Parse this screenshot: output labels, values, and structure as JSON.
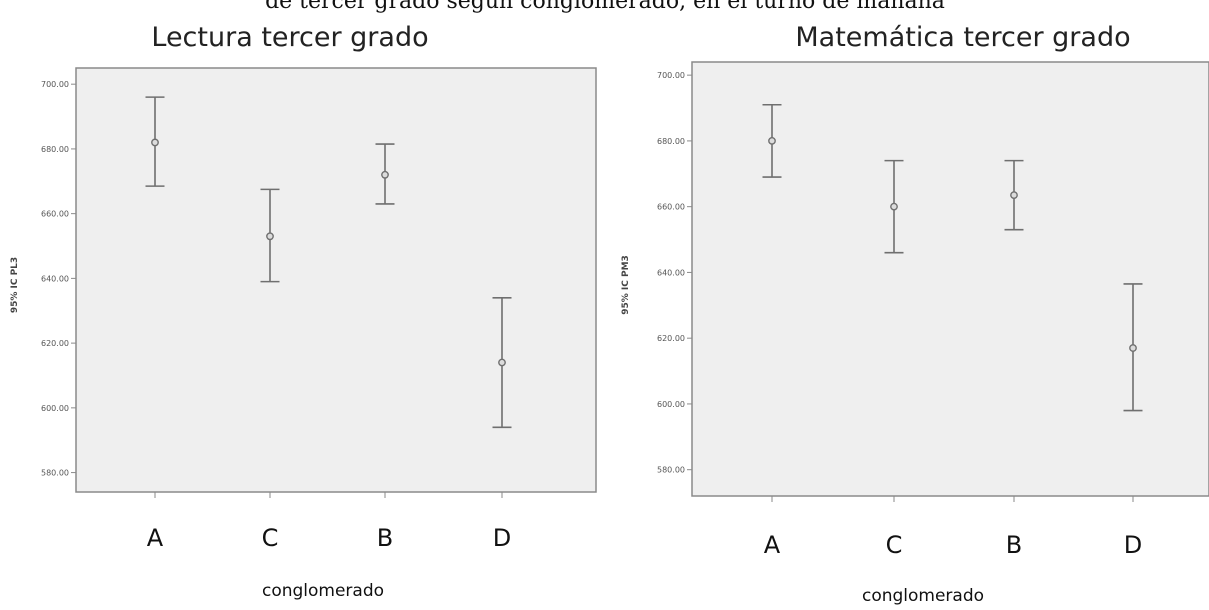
{
  "header_text": "de tercer grado según conglomerado, en el turno de mañana",
  "colors": {
    "plot_background": "#efefef",
    "error_bar": "#6f6f6f",
    "frame": "#8a8a8a"
  },
  "chart_data": [
    {
      "type": "errorbar",
      "title": "Lectura tercer grado",
      "xlabel": "conglomerado",
      "ylabel": "95% IC PL3",
      "categories": [
        "A",
        "C",
        "B",
        "D"
      ],
      "mean": [
        682,
        653,
        672,
        614
      ],
      "lower": [
        668.5,
        639,
        663,
        594
      ],
      "upper": [
        696,
        667.5,
        681.5,
        634
      ],
      "ylim": [
        574,
        705
      ],
      "yticks": [
        580,
        600,
        620,
        640,
        660,
        680,
        700
      ],
      "ytick_labels": [
        "580.00",
        "600.00",
        "620.00",
        "640.00",
        "660.00",
        "680.00",
        "700.00"
      ],
      "grid": false
    },
    {
      "type": "errorbar",
      "title": "Matemática tercer grado",
      "xlabel": "conglomerado",
      "ylabel": "95% IC PM3",
      "categories": [
        "A",
        "C",
        "B",
        "D"
      ],
      "mean": [
        680,
        660,
        663.5,
        617
      ],
      "lower": [
        669,
        646,
        653,
        598
      ],
      "upper": [
        691,
        674,
        674,
        636.5
      ],
      "ylim": [
        572,
        704
      ],
      "yticks": [
        580,
        600,
        620,
        640,
        660,
        680,
        700
      ],
      "ytick_labels": [
        "580.00",
        "600.00",
        "620.00",
        "640.00",
        "660.00",
        "680.00",
        "700.00"
      ],
      "grid": false
    }
  ]
}
